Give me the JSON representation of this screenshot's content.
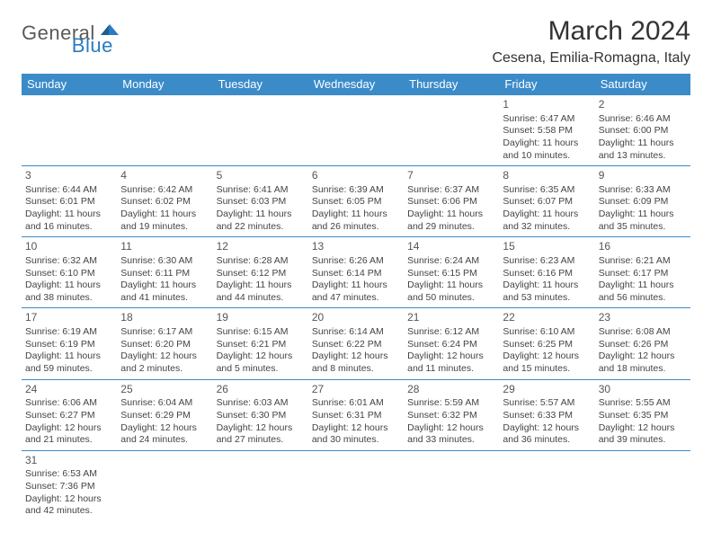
{
  "logo": {
    "part1": "General",
    "part2": "Blue"
  },
  "title": "March 2024",
  "location": "Cesena, Emilia-Romagna, Italy",
  "colors": {
    "header_bg": "#3b8bc9",
    "header_text": "#ffffff",
    "border": "#3b8bc9",
    "text": "#444444",
    "logo_gray": "#5a5a5a",
    "logo_blue": "#2b7bbf",
    "background": "#ffffff"
  },
  "day_headers": [
    "Sunday",
    "Monday",
    "Tuesday",
    "Wednesday",
    "Thursday",
    "Friday",
    "Saturday"
  ],
  "weeks": [
    [
      null,
      null,
      null,
      null,
      null,
      {
        "n": "1",
        "sr": "6:47 AM",
        "ss": "5:58 PM",
        "d1": "11 hours",
        "d2": "and 10 minutes."
      },
      {
        "n": "2",
        "sr": "6:46 AM",
        "ss": "6:00 PM",
        "d1": "11 hours",
        "d2": "and 13 minutes."
      }
    ],
    [
      {
        "n": "3",
        "sr": "6:44 AM",
        "ss": "6:01 PM",
        "d1": "11 hours",
        "d2": "and 16 minutes."
      },
      {
        "n": "4",
        "sr": "6:42 AM",
        "ss": "6:02 PM",
        "d1": "11 hours",
        "d2": "and 19 minutes."
      },
      {
        "n": "5",
        "sr": "6:41 AM",
        "ss": "6:03 PM",
        "d1": "11 hours",
        "d2": "and 22 minutes."
      },
      {
        "n": "6",
        "sr": "6:39 AM",
        "ss": "6:05 PM",
        "d1": "11 hours",
        "d2": "and 26 minutes."
      },
      {
        "n": "7",
        "sr": "6:37 AM",
        "ss": "6:06 PM",
        "d1": "11 hours",
        "d2": "and 29 minutes."
      },
      {
        "n": "8",
        "sr": "6:35 AM",
        "ss": "6:07 PM",
        "d1": "11 hours",
        "d2": "and 32 minutes."
      },
      {
        "n": "9",
        "sr": "6:33 AM",
        "ss": "6:09 PM",
        "d1": "11 hours",
        "d2": "and 35 minutes."
      }
    ],
    [
      {
        "n": "10",
        "sr": "6:32 AM",
        "ss": "6:10 PM",
        "d1": "11 hours",
        "d2": "and 38 minutes."
      },
      {
        "n": "11",
        "sr": "6:30 AM",
        "ss": "6:11 PM",
        "d1": "11 hours",
        "d2": "and 41 minutes."
      },
      {
        "n": "12",
        "sr": "6:28 AM",
        "ss": "6:12 PM",
        "d1": "11 hours",
        "d2": "and 44 minutes."
      },
      {
        "n": "13",
        "sr": "6:26 AM",
        "ss": "6:14 PM",
        "d1": "11 hours",
        "d2": "and 47 minutes."
      },
      {
        "n": "14",
        "sr": "6:24 AM",
        "ss": "6:15 PM",
        "d1": "11 hours",
        "d2": "and 50 minutes."
      },
      {
        "n": "15",
        "sr": "6:23 AM",
        "ss": "6:16 PM",
        "d1": "11 hours",
        "d2": "and 53 minutes."
      },
      {
        "n": "16",
        "sr": "6:21 AM",
        "ss": "6:17 PM",
        "d1": "11 hours",
        "d2": "and 56 minutes."
      }
    ],
    [
      {
        "n": "17",
        "sr": "6:19 AM",
        "ss": "6:19 PM",
        "d1": "11 hours",
        "d2": "and 59 minutes."
      },
      {
        "n": "18",
        "sr": "6:17 AM",
        "ss": "6:20 PM",
        "d1": "12 hours",
        "d2": "and 2 minutes."
      },
      {
        "n": "19",
        "sr": "6:15 AM",
        "ss": "6:21 PM",
        "d1": "12 hours",
        "d2": "and 5 minutes."
      },
      {
        "n": "20",
        "sr": "6:14 AM",
        "ss": "6:22 PM",
        "d1": "12 hours",
        "d2": "and 8 minutes."
      },
      {
        "n": "21",
        "sr": "6:12 AM",
        "ss": "6:24 PM",
        "d1": "12 hours",
        "d2": "and 11 minutes."
      },
      {
        "n": "22",
        "sr": "6:10 AM",
        "ss": "6:25 PM",
        "d1": "12 hours",
        "d2": "and 15 minutes."
      },
      {
        "n": "23",
        "sr": "6:08 AM",
        "ss": "6:26 PM",
        "d1": "12 hours",
        "d2": "and 18 minutes."
      }
    ],
    [
      {
        "n": "24",
        "sr": "6:06 AM",
        "ss": "6:27 PM",
        "d1": "12 hours",
        "d2": "and 21 minutes."
      },
      {
        "n": "25",
        "sr": "6:04 AM",
        "ss": "6:29 PM",
        "d1": "12 hours",
        "d2": "and 24 minutes."
      },
      {
        "n": "26",
        "sr": "6:03 AM",
        "ss": "6:30 PM",
        "d1": "12 hours",
        "d2": "and 27 minutes."
      },
      {
        "n": "27",
        "sr": "6:01 AM",
        "ss": "6:31 PM",
        "d1": "12 hours",
        "d2": "and 30 minutes."
      },
      {
        "n": "28",
        "sr": "5:59 AM",
        "ss": "6:32 PM",
        "d1": "12 hours",
        "d2": "and 33 minutes."
      },
      {
        "n": "29",
        "sr": "5:57 AM",
        "ss": "6:33 PM",
        "d1": "12 hours",
        "d2": "and 36 minutes."
      },
      {
        "n": "30",
        "sr": "5:55 AM",
        "ss": "6:35 PM",
        "d1": "12 hours",
        "d2": "and 39 minutes."
      }
    ],
    [
      {
        "n": "31",
        "sr": "6:53 AM",
        "ss": "7:36 PM",
        "d1": "12 hours",
        "d2": "and 42 minutes."
      },
      null,
      null,
      null,
      null,
      null,
      null
    ]
  ],
  "labels": {
    "sunrise": "Sunrise:",
    "sunset": "Sunset:",
    "daylight": "Daylight:"
  }
}
